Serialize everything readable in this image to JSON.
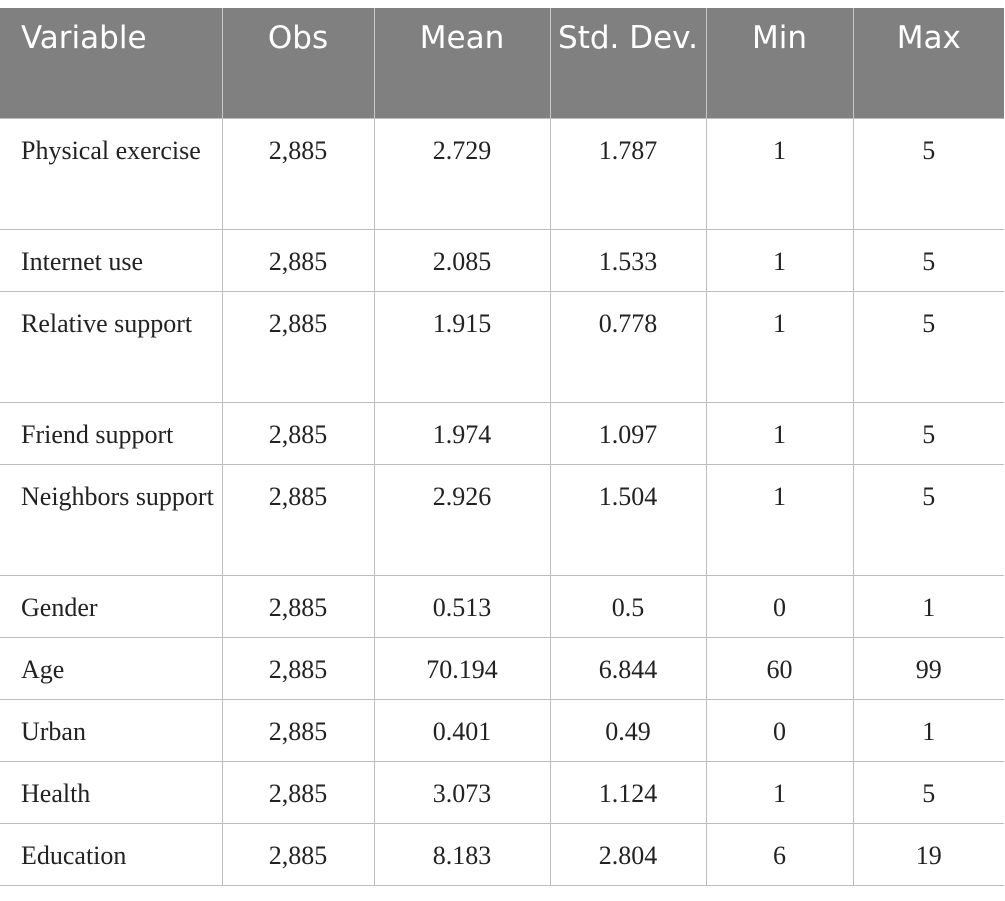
{
  "table": {
    "columns": [
      "Variable",
      "Obs",
      "Mean",
      "Std. Dev.",
      "Min",
      "Max"
    ],
    "rows": [
      {
        "variable": "Physical exercise",
        "obs": "2,885",
        "mean": "2.729",
        "std": "1.787",
        "min": "1",
        "max": "5"
      },
      {
        "variable": "Internet use",
        "obs": "2,885",
        "mean": "2.085",
        "std": "1.533",
        "min": "1",
        "max": "5"
      },
      {
        "variable": "Relative support",
        "obs": "2,885",
        "mean": "1.915",
        "std": "0.778",
        "min": "1",
        "max": "5"
      },
      {
        "variable": "Friend support",
        "obs": "2,885",
        "mean": "1.974",
        "std": "1.097",
        "min": "1",
        "max": "5"
      },
      {
        "variable": "Neighbors support",
        "obs": "2,885",
        "mean": "2.926",
        "std": "1.504",
        "min": "1",
        "max": "5"
      },
      {
        "variable": "Gender",
        "obs": "2,885",
        "mean": "0.513",
        "std": "0.5",
        "min": "0",
        "max": "1"
      },
      {
        "variable": "Age",
        "obs": "2,885",
        "mean": "70.194",
        "std": "6.844",
        "min": "60",
        "max": "99"
      },
      {
        "variable": "Urban",
        "obs": "2,885",
        "mean": "0.401",
        "std": "0.49",
        "min": "0",
        "max": "1"
      },
      {
        "variable": "Health",
        "obs": "2,885",
        "mean": "3.073",
        "std": "1.124",
        "min": "1",
        "max": "5"
      },
      {
        "variable": "Education",
        "obs": "2,885",
        "mean": "8.183",
        "std": "2.804",
        "min": "6",
        "max": "19"
      }
    ]
  },
  "colors": {
    "header_bg": "#808080",
    "header_text": "#ffffff",
    "grid_line": "#bdbdbd",
    "body_text": "#222222"
  }
}
